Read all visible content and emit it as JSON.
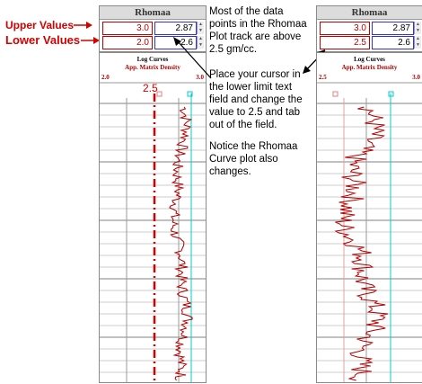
{
  "annotations": {
    "upper_label": "Upper Values",
    "lower_label": "Lower Values",
    "marker_value": "2.5",
    "note_1": "Most of the data points in the Rhomaa Plot track are above 2.5 gm/cc.",
    "note_2": "Place your cursor in the lower limit text field and change the value to 2.5 and tab out of the field.",
    "note_3": "Notice the Rhomaa Curve plot also changes."
  },
  "left_panel": {
    "title": "Rhomaa",
    "upper_low": "3.0",
    "upper_high": "2.87",
    "lower_low": "2.0",
    "lower_high": "2.6",
    "curves_title": "Log Curves",
    "curve_label_1": "App.",
    "curve_label_2": "Matrix",
    "curve_label_3": "Density",
    "scale_min": "2.0",
    "scale_max": "3.0"
  },
  "right_panel": {
    "title": "Rhomaa",
    "upper_low": "3.0",
    "upper_high": "2.87",
    "lower_low": "2.5",
    "lower_high": "2.6",
    "curves_title": "Log Curves",
    "curve_label_1": "App.",
    "curve_label_2": "Matrix",
    "curve_label_3": "Density",
    "scale_min": "2.5",
    "scale_max": "3.0"
  },
  "colors": {
    "annotation_red": "#d40000",
    "curve_red": "#b00000",
    "cutoff_cyan": "#00cccc",
    "field_border_red": "#c00000",
    "field_border_blue": "#3333cc"
  }
}
